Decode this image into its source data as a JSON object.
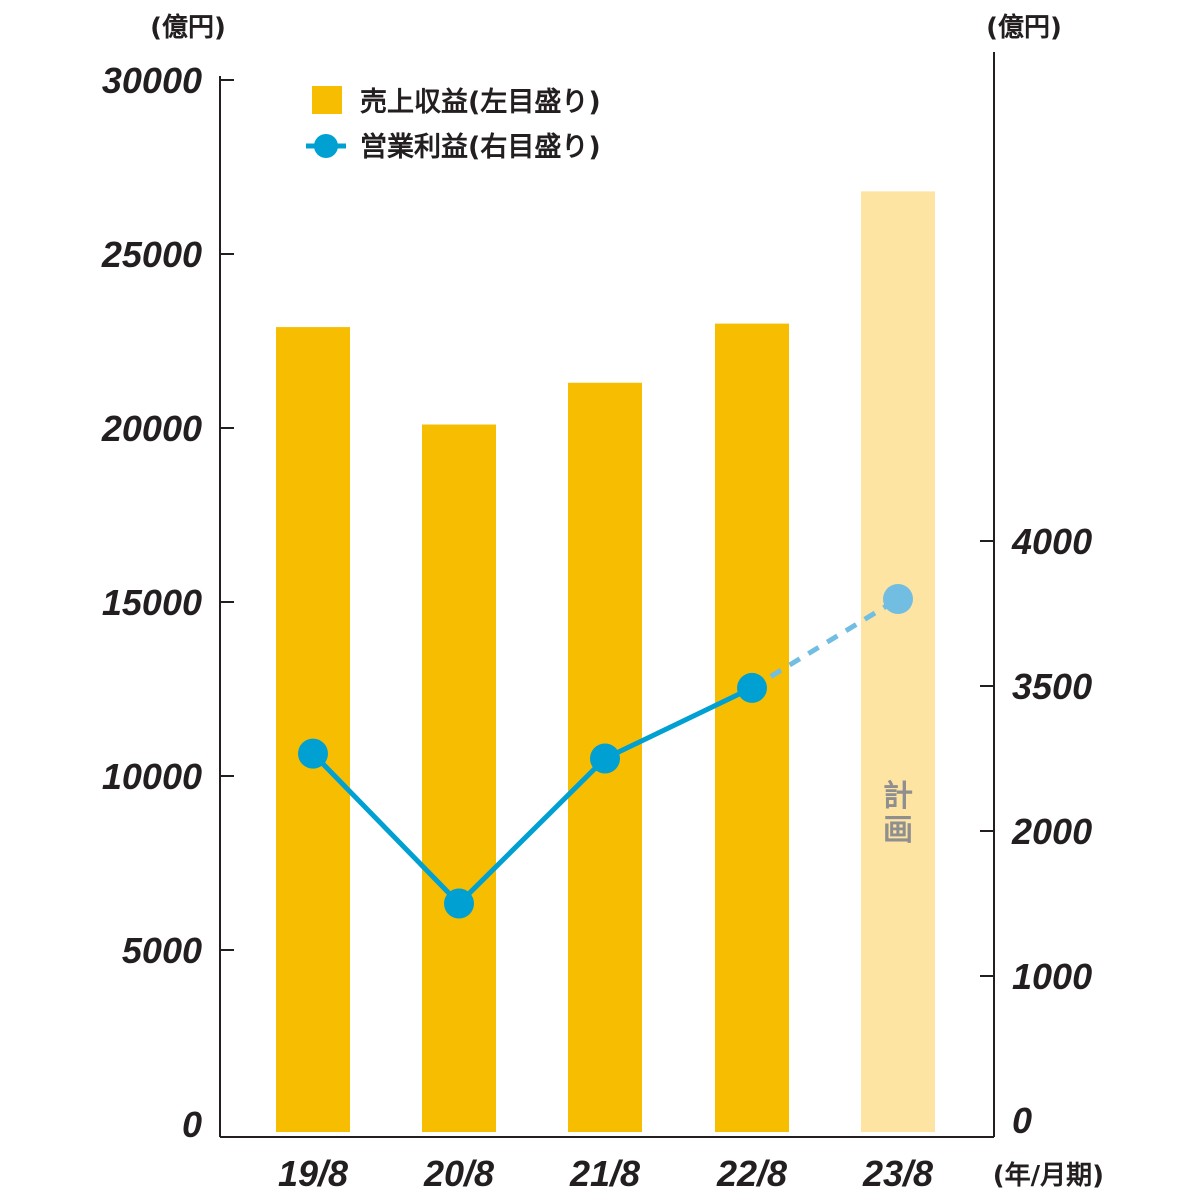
{
  "chart_data": {
    "type": "bar",
    "categories": [
      "19/8",
      "20/8",
      "21/8",
      "22/8",
      "23/8"
    ],
    "x_unit": "(年/月期)",
    "left_axis": {
      "unit": "(億円)",
      "ylim": [
        0,
        30000
      ],
      "ticks": [
        0,
        5000,
        10000,
        15000,
        20000,
        25000,
        30000
      ]
    },
    "right_axis": {
      "unit": "(億円)",
      "ticks": [
        0,
        1000,
        2000,
        3500,
        4000
      ],
      "scale_note": "broken axis: 0, 1000, 2000 then 3500, 4000"
    },
    "series": [
      {
        "name": "売上収益(左目盛り)",
        "type": "bar",
        "axis": "left",
        "color": "#f7bd00",
        "plan_color": "#fde4a3",
        "values": [
          22900,
          20100,
          21300,
          23000,
          26800
        ]
      },
      {
        "name": "営業利益(右目盛り)",
        "type": "line",
        "axis": "right",
        "color": "#00a0d2",
        "plan_color": "#72bde2",
        "values": [
          2800,
          1500,
          2750,
          3480,
          3800
        ]
      }
    ],
    "plan_index": 4,
    "plan_label": "計画",
    "grid": false,
    "legend_position": "top-left"
  }
}
